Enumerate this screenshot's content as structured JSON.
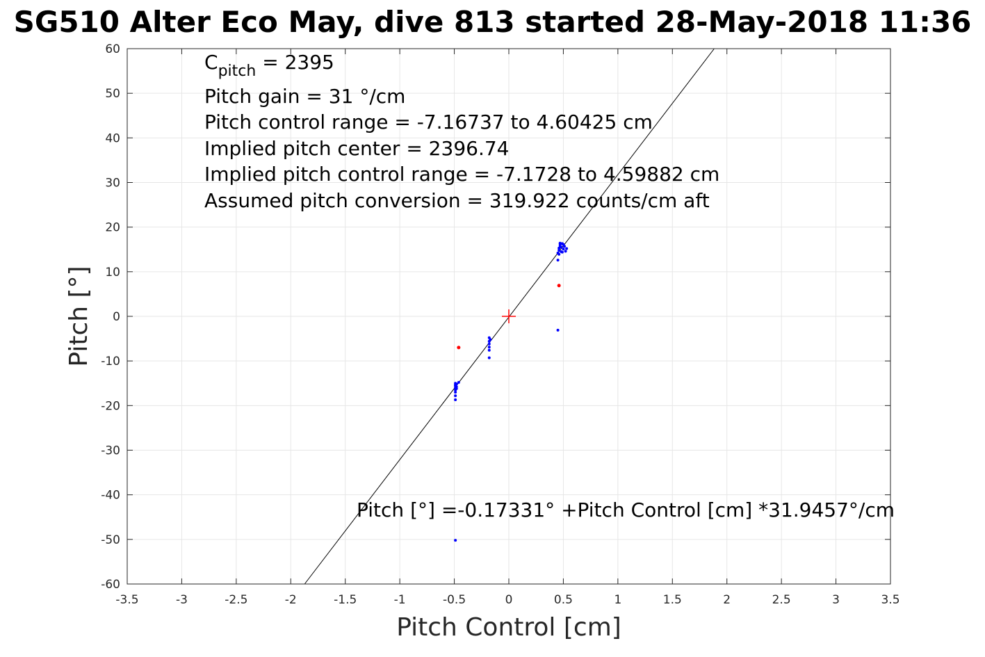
{
  "chart_data": {
    "type": "scatter",
    "title": "SG510 Alter Eco May, dive 813 started 28-May-2018 11:36",
    "xlabel": "Pitch Control [cm]",
    "ylabel": "Pitch [°]",
    "xlim": [
      -3.5,
      3.5
    ],
    "ylim": [
      -60,
      60
    ],
    "xticks": [
      -3.5,
      -3,
      -2.5,
      -2,
      -1.5,
      -1,
      -0.5,
      0,
      0.5,
      1,
      1.5,
      2,
      2.5,
      3,
      3.5
    ],
    "xtick_labels": [
      "-3.5",
      "-3",
      "-2.5",
      "-2",
      "-1.5",
      "-1",
      "-0.5",
      "0",
      "0.5",
      "1",
      "1.5",
      "2",
      "2.5",
      "3",
      "3.5"
    ],
    "yticks": [
      -60,
      -50,
      -40,
      -30,
      -20,
      -10,
      0,
      10,
      20,
      30,
      40,
      50,
      60
    ],
    "ytick_labels": [
      "-60",
      "-50",
      "-40",
      "-30",
      "-20",
      "-10",
      "0",
      "10",
      "20",
      "30",
      "40",
      "50",
      "60"
    ],
    "grid": true,
    "colors": {
      "fit_line": "#000000",
      "points": "#0000ff",
      "outliers": "#ff0000",
      "center_marker": "#ff0000",
      "grid": "#e6e6e6"
    },
    "fit_line": {
      "intercept": -0.17331,
      "slope": 31.9457
    },
    "center_marker": {
      "x": 0,
      "y": 0,
      "marker": "plus"
    },
    "series": [
      {
        "x": [
          -0.49,
          -0.49,
          -0.49,
          -0.49,
          -0.49,
          -0.48,
          -0.48,
          -0.49,
          -0.49,
          -0.49,
          -0.46,
          -0.48,
          -0.49,
          -0.18,
          -0.18,
          -0.18,
          -0.18,
          -0.18,
          -0.18,
          -0.17,
          0.45,
          0.46,
          0.46,
          0.47,
          0.47,
          0.48,
          0.48,
          0.49,
          0.5,
          0.5,
          0.51,
          0.52,
          0.46,
          0.47,
          0.45,
          0.53,
          0.49,
          0.45,
          -0.49
        ],
        "y": [
          -15,
          -15.5,
          -16,
          -16.5,
          -17,
          -15.2,
          -15.8,
          -17.8,
          -18.7,
          -15.3,
          -14.8,
          -16.2,
          -15.6,
          -4.8,
          -5.6,
          -6.2,
          -6.9,
          -7.6,
          -9.3,
          -5.2,
          14.2,
          14.8,
          15.3,
          15.8,
          16.2,
          14.5,
          15.5,
          16.3,
          15.1,
          16.1,
          15.7,
          14.6,
          13.9,
          16.4,
          12.6,
          15.2,
          14.4,
          -3.1,
          -50.2
        ]
      },
      {
        "x": [
          -0.46,
          0.46
        ],
        "y": [
          -7,
          6.9
        ]
      }
    ],
    "annotations": [
      {
        "text_main": "C",
        "text_sub": "pitch",
        "text_rest": " = 2395"
      },
      {
        "text": "Pitch gain = 31 °/cm"
      },
      {
        "text": "Pitch control range = -7.16737 to 4.60425 cm"
      },
      {
        "text": "Implied pitch center = 2396.74"
      },
      {
        "text": "Implied pitch control range = -7.1728 to 4.59882 cm"
      },
      {
        "text": "Assumed pitch conversion = 319.922 counts/cm aft"
      },
      {
        "text": "Pitch [°] =-0.17331° +Pitch Control [cm] *31.9457°/cm"
      }
    ]
  }
}
